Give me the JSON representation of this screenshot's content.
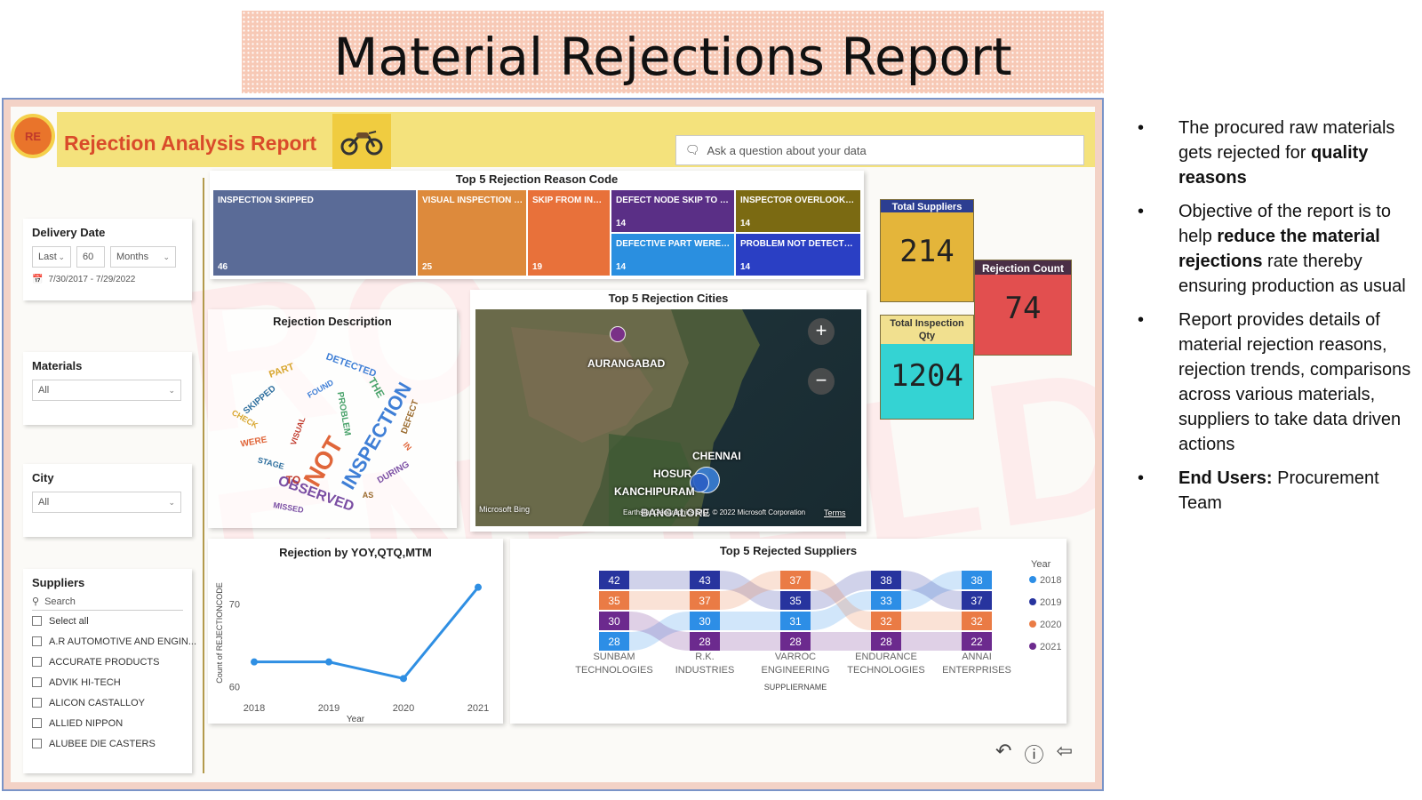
{
  "slide": {
    "title": "Material Rejections Report",
    "bullets": [
      {
        "parts": [
          {
            "text": "The procured raw materials gets rejected for "
          },
          {
            "text": "quality reasons",
            "bold": true
          }
        ]
      },
      {
        "parts": [
          {
            "text": "Objective of the report is to help "
          },
          {
            "text": "reduce the material rejections",
            "bold": true
          },
          {
            "text": " rate thereby ensuring production as usual"
          }
        ]
      },
      {
        "parts": [
          {
            "text": "Report provides details of material rejection reasons, rejection trends, comparisons across various materials, suppliers to take data driven actions"
          }
        ]
      },
      {
        "parts": [
          {
            "text": "End Users:",
            "bold": true
          },
          {
            "text": " Procurement Team"
          }
        ]
      }
    ]
  },
  "report": {
    "logo_text": "RE",
    "title": "Rejection Analysis Report",
    "qa_placeholder": "Ask a question about your data",
    "watermark": "RO ENFIELD"
  },
  "filters": {
    "delivery_date": {
      "label": "Delivery Date",
      "mode": "Last",
      "count": "60",
      "unit": "Months",
      "range": "7/30/2017 - 7/29/2022"
    },
    "materials": {
      "label": "Materials",
      "value": "All"
    },
    "city": {
      "label": "City",
      "value": "All"
    },
    "suppliers": {
      "label": "Suppliers",
      "search_placeholder": "Search",
      "items": [
        "Select all",
        "A.R AUTOMOTIVE AND ENGIN...",
        "ACCURATE PRODUCTS",
        "ADVIK HI-TECH",
        "ALICON CASTALLOY",
        "ALLIED NIPPON",
        "ALUBEE DIE CASTERS"
      ]
    }
  },
  "reason_codes": {
    "title": "Top 5 Rejection Reason Code",
    "tiles": [
      {
        "label": "INSPECTION SKIPPED",
        "value": "46",
        "color": "#5a6b97"
      },
      {
        "label": "VISUAL INSPECTION SKI...",
        "value": "25",
        "color": "#dd8a3c"
      },
      {
        "label": "SKIP FROM INSP...",
        "value": "19",
        "color": "#e8713a"
      },
      {
        "label": "DEFECT NODE SKIP TO PDI ...",
        "value": "14",
        "color": "#5a2f86"
      },
      {
        "label": "INSPECTOR OVERLOOKED ...",
        "value": "14",
        "color": "#7b6a12"
      },
      {
        "label": "DEFECTIVE PART WERE DES...",
        "value": "14",
        "color": "#2a8fe0"
      },
      {
        "label": "PROBLEM NOT DETECTED ...",
        "value": "14",
        "color": "#2a3fc4"
      }
    ]
  },
  "word_cloud": {
    "title": "Rejection Description",
    "words": [
      "NOT",
      "INSPECTION",
      "OBSERVED",
      "PART",
      "THE",
      "TO",
      "SKIPPED",
      "DEFECT",
      "WERE",
      "DETECTED",
      "DURING",
      "CHECK",
      "PROBLEM",
      "VISUAL",
      "STAGE",
      "AS",
      "IN",
      "FOUND",
      "MISSED"
    ]
  },
  "map": {
    "title": "Top 5 Rejection Cities",
    "cities": [
      "AURANGABAD",
      "CHENNAI",
      "HOSUR",
      "KANCHIPURAM",
      "BANGALORE"
    ],
    "attribution_left": "Microsoft Bing",
    "attribution_right": "Earthstar Geographics SIO, © 2022 Microsoft Corporation",
    "terms": "Terms",
    "zoom_in": "+",
    "zoom_out": "−"
  },
  "kpis": {
    "suppliers": {
      "label": "Total Suppliers",
      "value": "214",
      "color": "#e4b53a"
    },
    "inspection": {
      "label": "Total Inspection Qty",
      "value": "1204",
      "color": "#34d3d3"
    },
    "rejection": {
      "label": "Rejection Count",
      "value": "74",
      "color": "#e24f4f"
    }
  },
  "footer_icons": [
    "undo-icon",
    "info-icon",
    "back-icon"
  ],
  "chart_data": [
    {
      "type": "line",
      "title": "Rejection by YOY,QTQ,MTM",
      "xlabel": "Year",
      "ylabel": "Count of REJECTIONCODE",
      "x": [
        "2018",
        "2019",
        "2020",
        "2021"
      ],
      "series": [
        {
          "values": [
            63,
            63,
            61,
            72
          ]
        }
      ],
      "ylim": [
        59,
        74
      ],
      "yticks": [
        60,
        70
      ],
      "color": "#2f8fe3"
    },
    {
      "type": "bar",
      "title": "Top 5 Rejected Suppliers",
      "xlabel": "SUPPLIERNAME",
      "categories": [
        "SUNBAM TECHNOLOGIES",
        "R.K. INDUSTRIES",
        "VARROC ENGINEERING",
        "ENDURANCE TECHNOLOGIES",
        "ANNAI ENTERPRISES"
      ],
      "legend_title": "Year",
      "series": [
        {
          "name": "2018",
          "color": "#2d8ee6",
          "values": [
            28,
            30,
            31,
            33,
            38
          ]
        },
        {
          "name": "2019",
          "color": "#27349e",
          "values": [
            42,
            43,
            35,
            38,
            37
          ]
        },
        {
          "name": "2020",
          "color": "#ea7b45",
          "values": [
            35,
            37,
            37,
            32,
            32
          ]
        },
        {
          "name": "2021",
          "color": "#6c2a8e",
          "values": [
            30,
            28,
            28,
            28,
            22
          ]
        }
      ],
      "stack_order": [
        [
          "2019",
          "2020",
          "2021",
          "2018"
        ],
        [
          "2019",
          "2020",
          "2018",
          "2021"
        ],
        [
          "2020",
          "2019",
          "2018",
          "2021"
        ],
        [
          "2019",
          "2018",
          "2020",
          "2021"
        ],
        [
          "2018",
          "2019",
          "2020",
          "2021"
        ]
      ],
      "legend_position": "right"
    }
  ]
}
